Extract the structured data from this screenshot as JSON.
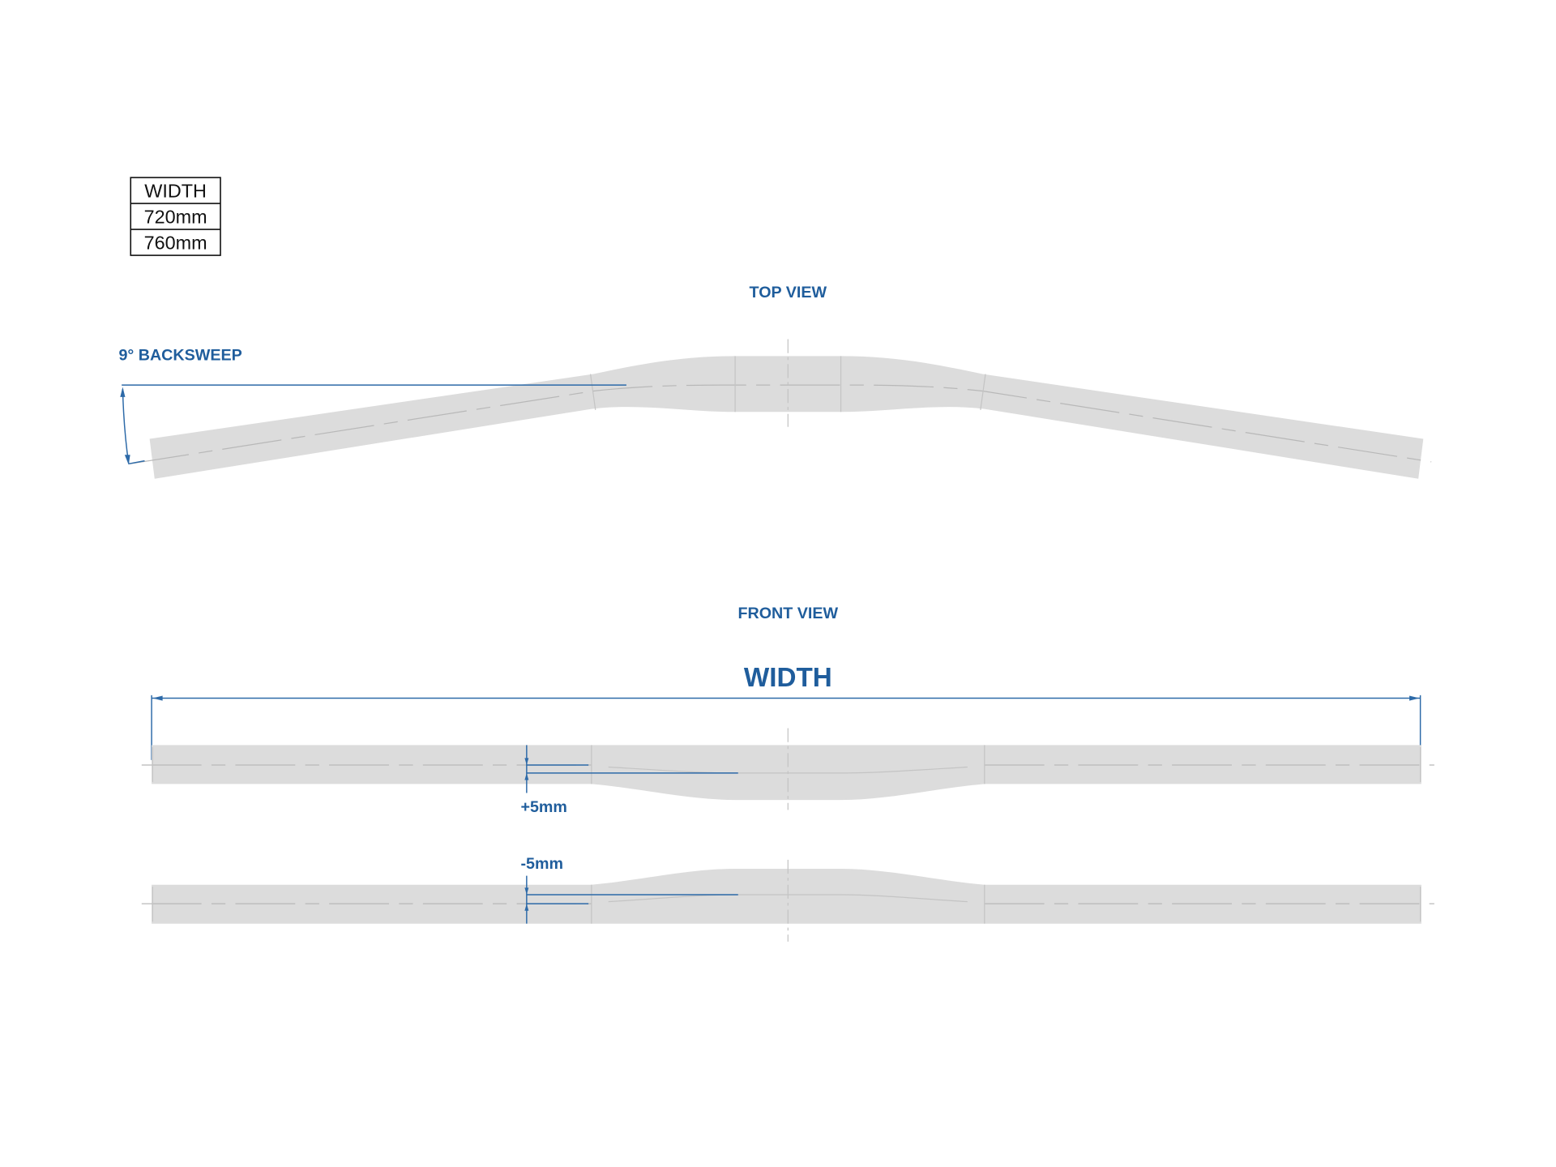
{
  "width_table": {
    "header": "WIDTH",
    "rows": [
      "720mm",
      "760mm"
    ]
  },
  "top_view": {
    "title": "TOP VIEW",
    "backsweep_label": "9° BACKSWEEP"
  },
  "front_view": {
    "title": "FRONT VIEW",
    "width_label": "WIDTH",
    "rise_plus_label": "+5mm",
    "rise_minus_label": "-5mm"
  },
  "colors": {
    "accent": "#1f5d9c",
    "bar": "#dcdcdc"
  }
}
